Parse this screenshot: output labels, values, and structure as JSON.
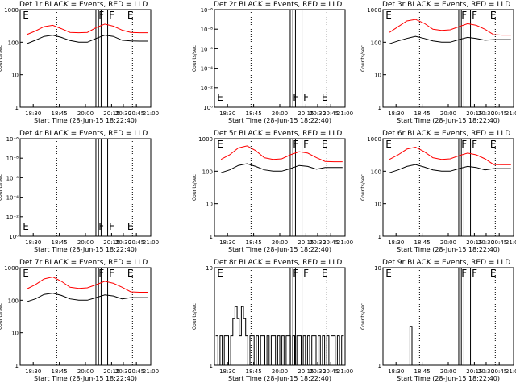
{
  "chart_data": [
    {
      "type": "line",
      "title": "Det 1r BLACK = Events, RED = LLD",
      "xlabel": "Start Time (28-Jun-15 18:22:40)",
      "ylabel": "Counts/sec",
      "yscale": "log",
      "ylim": [
        1,
        1000
      ],
      "yticks": [
        "1",
        "10",
        "100",
        "1000"
      ],
      "xticks": [
        "18:30",
        "18:45",
        "20:00",
        "20:15",
        "20:30",
        "20:45",
        "21:00"
      ],
      "flags": [
        "E",
        "F",
        "F",
        "E"
      ],
      "profile": "high",
      "series": [
        {
          "color": "#ff0000",
          "values": [
            170,
            220,
            300,
            330,
            260,
            200,
            195,
            200,
            280,
            360,
            310,
            235,
            200,
            195,
            195
          ]
        },
        {
          "color": "#000000",
          "values": [
            90,
            115,
            150,
            165,
            140,
            112,
            100,
            100,
            130,
            165,
            150,
            115,
            110,
            108,
            108
          ]
        }
      ]
    },
    {
      "type": "line",
      "title": "Det 2r BLACK = Events, RED = LLD",
      "xlabel": "Start Time (28-Jun-15 18:22:40)",
      "ylabel": "Counts/sec",
      "yscale": "log",
      "yticks": [
        "10⁰",
        "10⁻²",
        "10⁻⁴",
        "10⁻⁶",
        "10⁻⁸",
        "10⁻⁶"
      ],
      "xticks": [
        "18:30",
        "18:45",
        "20:00",
        "20:15",
        "20:30",
        "20:45",
        "21:00"
      ],
      "flags": [
        "E",
        "F",
        "F",
        "E"
      ],
      "profile": "empty",
      "series": []
    },
    {
      "type": "line",
      "title": "Det 3r BLACK = Events, RED = LLD",
      "xlabel": "Start Time (28-Jun-15 18:22:40)",
      "ylabel": "Counts/sec",
      "yscale": "log",
      "ylim": [
        1,
        1000
      ],
      "yticks": [
        "1",
        "10",
        "100",
        "1000"
      ],
      "xticks": [
        "18:30",
        "18:45",
        "20:00",
        "20:15",
        "20:30",
        "20:45",
        "21:00"
      ],
      "flags": [
        "E",
        "F",
        "F",
        "E"
      ],
      "profile": "high",
      "series": [
        {
          "color": "#ff0000",
          "values": [
            200,
            300,
            450,
            500,
            380,
            250,
            230,
            240,
            300,
            370,
            330,
            250,
            170,
            165,
            165
          ]
        },
        {
          "color": "#000000",
          "values": [
            90,
            110,
            130,
            150,
            130,
            110,
            100,
            100,
            120,
            140,
            130,
            115,
            120,
            120,
            120
          ]
        }
      ]
    },
    {
      "type": "line",
      "title": "Det 4r BLACK = Events, RED = LLD",
      "xlabel": "Start Time (28-Jun-15 18:22:40)",
      "ylabel": "Counts/sec",
      "yscale": "log",
      "yticks": [
        "10⁰",
        "10⁻²",
        "10⁻⁴",
        "10⁻⁶",
        "10⁻⁸",
        "10⁻⁶"
      ],
      "xticks": [
        "18:30",
        "18:45",
        "20:00",
        "20:15",
        "20:30",
        "20:45",
        "21:00"
      ],
      "flags": [
        "E",
        "F",
        "F",
        "E"
      ],
      "profile": "empty",
      "series": []
    },
    {
      "type": "line",
      "title": "Det 5r BLACK = Events, RED = LLD",
      "xlabel": "Start Time (28-Jun-15 18:22:40)",
      "ylabel": "Counts/sec",
      "yscale": "log",
      "ylim": [
        1,
        1000
      ],
      "yticks": [
        "1",
        "10",
        "100",
        "1000"
      ],
      "xticks": [
        "18:30",
        "18:45",
        "20:00",
        "20:15",
        "20:30",
        "20:45",
        "21:00"
      ],
      "flags": [
        "E",
        "F",
        "F",
        "E"
      ],
      "profile": "high",
      "series": [
        {
          "color": "#ff0000",
          "values": [
            230,
            320,
            520,
            600,
            430,
            260,
            230,
            240,
            320,
            400,
            360,
            260,
            200,
            195,
            195
          ]
        },
        {
          "color": "#000000",
          "values": [
            90,
            110,
            150,
            170,
            140,
            110,
            100,
            100,
            120,
            150,
            140,
            115,
            130,
            130,
            130
          ]
        }
      ]
    },
    {
      "type": "line",
      "title": "Det 6r BLACK = Events, RED = LLD",
      "xlabel": "Start Time (28-Jun-15 18:22:40)",
      "ylabel": "Counts/sec",
      "yscale": "log",
      "ylim": [
        1,
        1000
      ],
      "yticks": [
        "1",
        "10",
        "100",
        "1000"
      ],
      "xticks": [
        "18:30",
        "18:45",
        "20:00",
        "20:15",
        "20:30",
        "20:45",
        "21:00"
      ],
      "flags": [
        "E",
        "F",
        "F",
        "E"
      ],
      "profile": "high",
      "series": [
        {
          "color": "#ff0000",
          "values": [
            230,
            320,
            480,
            550,
            400,
            260,
            230,
            240,
            300,
            360,
            320,
            240,
            160,
            158,
            158
          ]
        },
        {
          "color": "#000000",
          "values": [
            90,
            110,
            140,
            160,
            135,
            110,
            100,
            100,
            120,
            140,
            130,
            110,
            120,
            120,
            120
          ]
        }
      ]
    },
    {
      "type": "line",
      "title": "Det 7r BLACK = Events, RED = LLD",
      "xlabel": "Start Time (28-Jun-15 18:22:40)",
      "ylabel": "Counts/sec",
      "yscale": "log",
      "ylim": [
        1,
        1000
      ],
      "yticks": [
        "1",
        "10",
        "100",
        "1000"
      ],
      "xticks": [
        "18:30",
        "18:45",
        "20:00",
        "20:15",
        "20:30",
        "20:45",
        "21:00"
      ],
      "flags": [
        "E",
        "F",
        "F",
        "E"
      ],
      "profile": "high",
      "series": [
        {
          "color": "#ff0000",
          "values": [
            220,
            300,
            450,
            520,
            380,
            250,
            230,
            240,
            300,
            380,
            330,
            250,
            180,
            175,
            175
          ]
        },
        {
          "color": "#000000",
          "values": [
            90,
            110,
            150,
            165,
            140,
            110,
            100,
            100,
            120,
            145,
            135,
            110,
            120,
            120,
            120
          ]
        }
      ]
    },
    {
      "type": "line",
      "title": "Det 8r BLACK = Events, RED = LLD",
      "xlabel": "Start Time (28-Jun-15 18:22:40)",
      "ylabel": "Counts/sec",
      "yscale": "log",
      "ylim": [
        1,
        10
      ],
      "yticks": [
        "1",
        "10"
      ],
      "xticks": [
        "18:30",
        "18:45",
        "20:00",
        "20:15",
        "20:30",
        "20:45",
        "21:00"
      ],
      "flags": [
        "E",
        "F",
        "F",
        "E"
      ],
      "profile": "low",
      "series": [
        {
          "color": "#000000",
          "values": [
            2,
            1,
            2,
            1,
            2,
            2,
            1,
            2,
            3,
            4,
            3,
            2,
            4,
            3,
            2,
            1,
            2,
            2,
            1,
            2,
            1,
            2,
            2,
            1,
            2,
            1,
            2,
            2,
            1,
            2,
            1,
            2,
            1,
            2,
            2,
            1,
            2,
            1,
            2,
            2,
            1,
            2,
            1,
            2,
            1,
            2,
            2,
            1,
            2,
            1,
            2,
            1,
            2,
            1,
            2,
            2,
            1,
            2,
            1,
            2
          ]
        }
      ]
    },
    {
      "type": "line",
      "title": "Det 9r BLACK = Events, RED = LLD",
      "xlabel": "Start Time (28-Jun-15 18:22:40)",
      "ylabel": "Counts/sec",
      "yscale": "log",
      "ylim": [
        1,
        10
      ],
      "yticks": [
        "1",
        "10"
      ],
      "xticks": [
        "18:30",
        "18:45",
        "20:00",
        "20:15",
        "20:30",
        "20:45",
        "21:00"
      ],
      "flags": [
        "E",
        "F",
        "F",
        "E"
      ],
      "profile": "spike",
      "series": [
        {
          "color": "#000000",
          "values": [
            1,
            1,
            1,
            1,
            1,
            1,
            1,
            1,
            1,
            1,
            1,
            1,
            2.5,
            1,
            1,
            1,
            1,
            1,
            1,
            1,
            1,
            1,
            1,
            1,
            1,
            1,
            1,
            1,
            1,
            1,
            1,
            1,
            1,
            1,
            1,
            1,
            1,
            1,
            1,
            1,
            1,
            1,
            1,
            1,
            1,
            1,
            1,
            1,
            1,
            1,
            1,
            1,
            1,
            1,
            1,
            1,
            1,
            1,
            1,
            1
          ]
        }
      ]
    }
  ]
}
